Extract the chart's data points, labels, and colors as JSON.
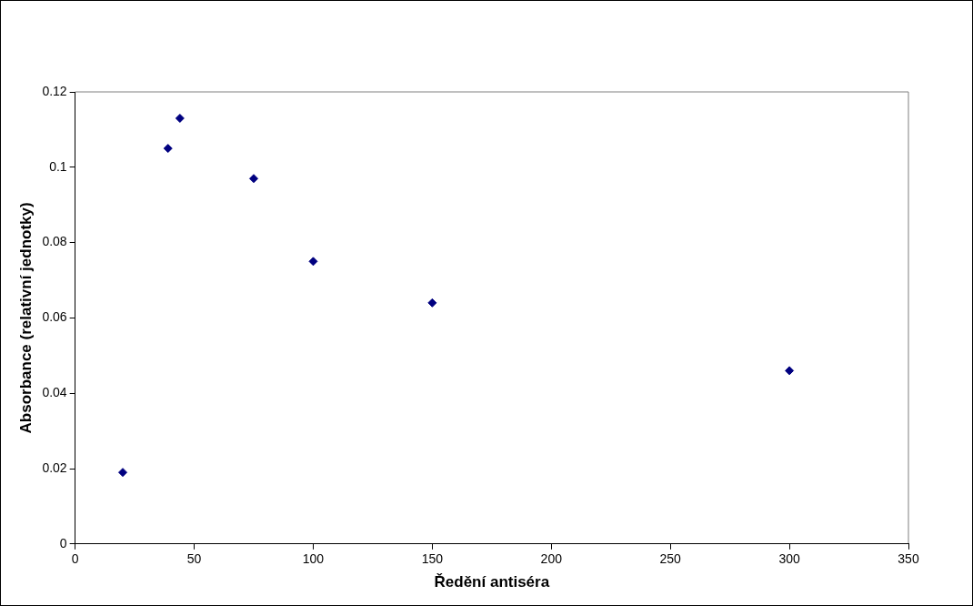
{
  "chart_data": {
    "type": "scatter",
    "xlabel": "Ředění antiséra",
    "ylabel": "Absorbance (relativní jednotky)",
    "series": [
      {
        "color": "#000080",
        "x": [
          20,
          39,
          44,
          75,
          100,
          150,
          300
        ],
        "values": [
          0.019,
          0.105,
          0.113,
          0.097,
          0.075,
          0.064,
          0.046
        ]
      }
    ],
    "xlim": [
      0,
      350
    ],
    "xticks": [
      0,
      50,
      100,
      150,
      200,
      250,
      300,
      350
    ],
    "ylim": [
      0,
      0.12
    ],
    "yticks": [
      0,
      0.02,
      0.04,
      0.06,
      0.08,
      0.1,
      0.12
    ],
    "marker": "diamond",
    "grid": false,
    "legend": false
  }
}
